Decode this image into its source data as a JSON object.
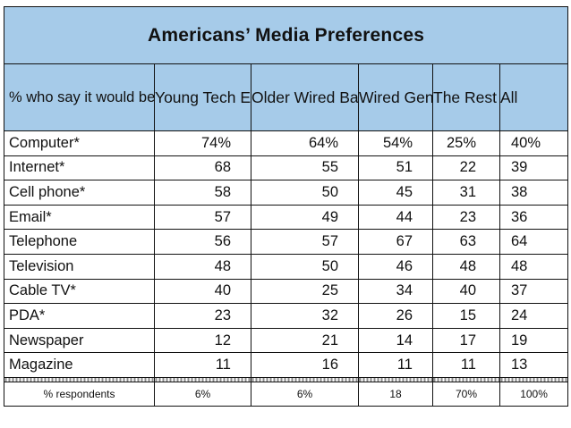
{
  "chart_data": {
    "type": "table",
    "title": "Americans’ Media Preferences",
    "columns": [
      "% who say it\nwould be “very\nhard” to give up",
      "Young\nTech\nElites",
      "Older Wired\nBaby\nBoomers",
      "Wired\nGen-\nXers",
      "The\nRest",
      "All"
    ],
    "rows": [
      {
        "label": "Computer*",
        "values": [
          "74%",
          "64%",
          "54%",
          "25%",
          "40%"
        ]
      },
      {
        "label": "Internet*",
        "values": [
          "68",
          "55",
          "51",
          "22",
          "39"
        ]
      },
      {
        "label": "Cell phone*",
        "values": [
          "58",
          "50",
          "45",
          "31",
          "38"
        ]
      },
      {
        "label": "Email*",
        "values": [
          "57",
          "49",
          "44",
          "23",
          "36"
        ]
      },
      {
        "label": "Telephone",
        "values": [
          "56",
          "57",
          "67",
          "63",
          "64"
        ]
      },
      {
        "label": "Television",
        "values": [
          "48",
          "50",
          "46",
          "48",
          "48"
        ]
      },
      {
        "label": "Cable TV*",
        "values": [
          "40",
          "25",
          "34",
          "40",
          "37"
        ]
      },
      {
        "label": "PDA*",
        "values": [
          "23",
          "32",
          "26",
          "15",
          "24"
        ]
      },
      {
        "label": "Newspaper",
        "values": [
          "12",
          "21",
          "14",
          "17",
          "19"
        ]
      },
      {
        "label": "Magazine",
        "values": [
          "11",
          "16",
          "11",
          "11",
          "13"
        ]
      }
    ],
    "footer": {
      "label": "% respondents",
      "values": [
        "6%",
        "6%",
        "18",
        "70%",
        "100%"
      ]
    }
  }
}
